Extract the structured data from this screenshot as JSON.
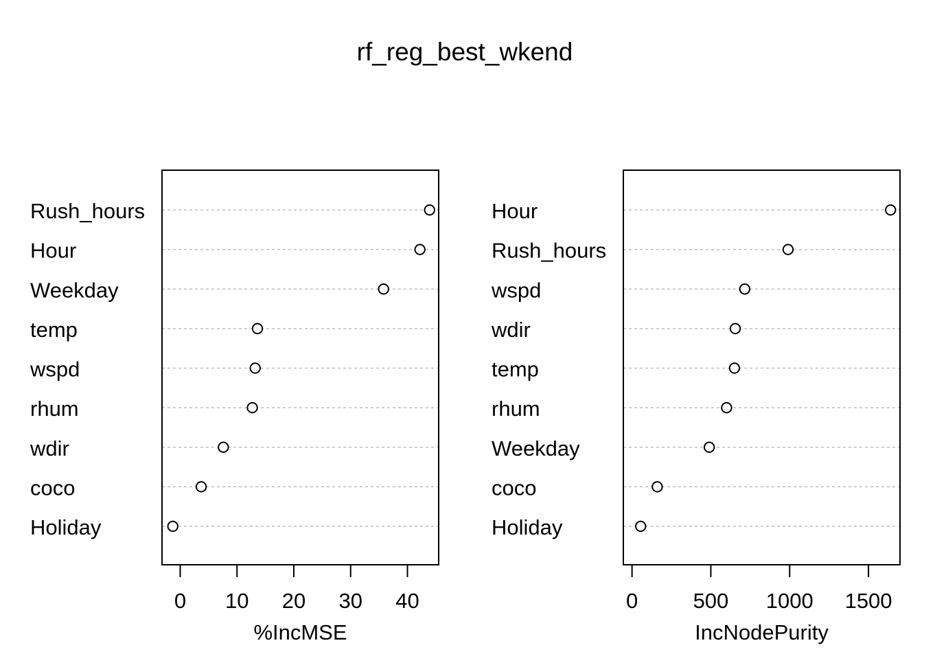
{
  "title": "rf_reg_best_wkend",
  "chart_data": [
    {
      "type": "dotchart",
      "xlabel": "%IncMSE",
      "xlim": [
        -3.2,
        45.5
      ],
      "xticks": [
        0,
        10,
        20,
        30,
        40
      ],
      "categories": [
        "Rush_hours",
        "Hour",
        "Weekday",
        "temp",
        "wspd",
        "rhum",
        "wdir",
        "coco",
        "Holiday"
      ],
      "values": [
        43.9,
        42.2,
        35.8,
        13.6,
        13.2,
        12.7,
        7.6,
        3.7,
        -1.3
      ]
    },
    {
      "type": "dotchart",
      "xlabel": "IncNodePurity",
      "xlim": [
        -55,
        1700
      ],
      "xticks": [
        0,
        500,
        1000,
        1500
      ],
      "categories": [
        "Hour",
        "Rush_hours",
        "wspd",
        "wdir",
        "temp",
        "rhum",
        "Weekday",
        "coco",
        "Holiday"
      ],
      "values": [
        1640,
        990,
        715,
        655,
        650,
        600,
        490,
        160,
        55
      ]
    }
  ]
}
